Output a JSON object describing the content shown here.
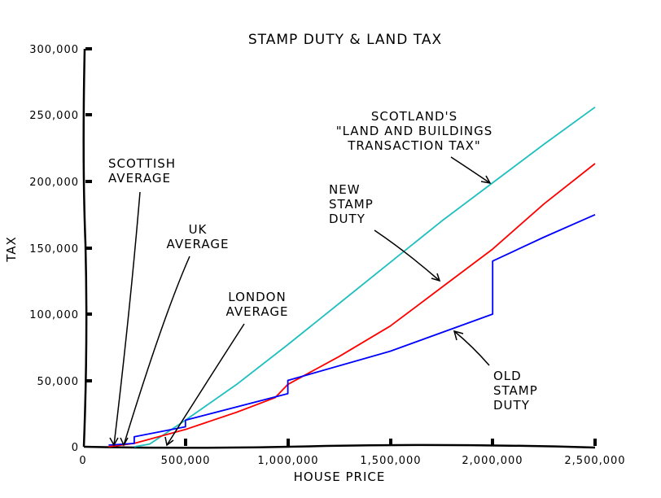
{
  "chart_data": {
    "type": "line",
    "title": "STAMP DUTY & LAND TAX",
    "xlabel": "HOUSE PRICE",
    "ylabel": "TAX",
    "xlim": [
      0,
      2500000
    ],
    "ylim": [
      0,
      300000
    ],
    "x_ticks": [
      "0",
      "500,000",
      "1,000,000",
      "1,500,000",
      "2,000,000",
      "2,500,000"
    ],
    "y_ticks": [
      "0",
      "50,000",
      "100,000",
      "150,000",
      "200,000",
      "250,000",
      "300,000"
    ],
    "grid": false,
    "series": [
      {
        "name": "Scotland's \"Land and Buildings Transaction Tax\"",
        "color": "#1fbfbf",
        "x": [
          250000,
          325000,
          500000,
          750000,
          1000000,
          1250000,
          1500000,
          1750000,
          2000000,
          2250000,
          2500000
        ],
        "y": [
          0,
          2000,
          20000,
          47000,
          77000,
          108000,
          139000,
          170000,
          199000,
          228000,
          256000
        ]
      },
      {
        "name": "New stamp duty",
        "color": "#ff0000",
        "x": [
          125000,
          250000,
          500000,
          750000,
          937500,
          1000000,
          1250000,
          1500000,
          1750000,
          2000000,
          2250000,
          2500000
        ],
        "y": [
          0,
          2500,
          13000,
          26000,
          37000,
          47000,
          68000,
          91000,
          120000,
          149000,
          183000,
          213500
        ]
      },
      {
        "name": "Old stamp duty",
        "color": "#0000ff",
        "x": [
          125000,
          250000,
          250001,
          500000,
          500001,
          1000000,
          1000001,
          1500000,
          2000000,
          2000001,
          2250000,
          2500000
        ],
        "y": [
          1250,
          2500,
          7500,
          15000,
          20000,
          40000,
          50000,
          72000,
          100000,
          140000,
          158000,
          175000
        ]
      }
    ],
    "annotations": [
      {
        "lines": [
          "SCOTTISH",
          "AVERAGE"
        ],
        "x": 180000
      },
      {
        "lines": [
          "UK",
          "AVERAGE"
        ],
        "x": 230000
      },
      {
        "lines": [
          "LONDON",
          "AVERAGE"
        ],
        "x": 430000
      },
      {
        "lines": [
          "SCOTLAND'S",
          "\"LAND AND BUILDINGS",
          "TRANSACTION TAX\""
        ]
      },
      {
        "lines": [
          "NEW",
          "STAMP",
          "DUTY"
        ]
      },
      {
        "lines": [
          "OLD",
          "STAMP",
          "DUTY"
        ]
      }
    ]
  }
}
